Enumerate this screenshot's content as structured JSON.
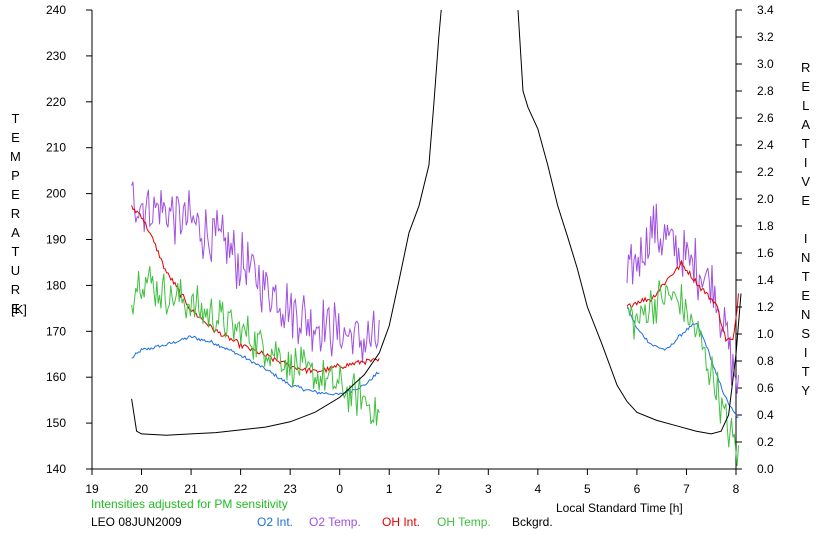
{
  "chart_data": {
    "type": "line",
    "left_axis": {
      "label": "TEMPERATURE",
      "unit": "[K]",
      "ylim": [
        140,
        240
      ],
      "ticks": [
        140,
        150,
        160,
        170,
        180,
        190,
        200,
        210,
        220,
        230,
        240
      ]
    },
    "right_axis": {
      "label": "RELATIVE INTENSITY",
      "ylim": [
        0.0,
        3.4
      ],
      "ticks": [
        "0.0",
        "0.2",
        "0.4",
        "0.6",
        "0.8",
        "1.0",
        "1.2",
        "1.4",
        "1.6",
        "1.8",
        "2.0",
        "2.2",
        "2.4",
        "2.6",
        "2.8",
        "3.0",
        "3.2",
        "3.4"
      ]
    },
    "x_axis": {
      "label": "Local Standard Time [h]",
      "domain": [
        19,
        32
      ],
      "tick_positions": [
        19,
        20,
        21,
        22,
        23,
        24,
        25,
        26,
        27,
        28,
        29,
        30,
        31,
        32
      ],
      "tick_labels": [
        "19",
        "20",
        "21",
        "22",
        "23",
        "0",
        "1",
        "2",
        "3",
        "4",
        "5",
        "6",
        "7",
        "8"
      ]
    },
    "annotation": "Intensities adjusted for PM sensitivity",
    "caption": "LEO 08JUN2009",
    "colors": {
      "o2_int": "#1e6fe0",
      "o2_temp": "#a050e0",
      "oh_int": "#e00000",
      "oh_temp": "#40c040",
      "bckgrd": "#000000",
      "annotation": "#22bb22"
    },
    "series": [
      {
        "name": "O2 Int.",
        "axis": "right",
        "key": "o2_int",
        "segments": [
          {
            "x": [
              19.8,
              20.0,
              20.5,
              21.0,
              21.5,
              22.0,
              22.5,
              23.0,
              23.5,
              24.0,
              24.5,
              24.8
            ],
            "y": [
              0.82,
              0.88,
              0.92,
              0.98,
              0.93,
              0.84,
              0.74,
              0.62,
              0.57,
              0.55,
              0.62,
              0.72
            ]
          },
          {
            "x": [
              29.8,
              30.0,
              30.3,
              30.6,
              30.9,
              31.2,
              31.4,
              31.6,
              31.8,
              31.95,
              32.05
            ],
            "y": [
              1.2,
              1.04,
              0.92,
              0.88,
              1.0,
              1.08,
              0.92,
              0.7,
              0.52,
              0.42,
              0.38
            ]
          }
        ]
      },
      {
        "name": "O2 Temp.",
        "axis": "left",
        "key": "o2_temp",
        "segments": [
          {
            "x": [
              19.8,
              20.0,
              20.5,
              21.0,
              21.5,
              22.0,
              22.5,
              23.0,
              23.5,
              24.0,
              24.5,
              24.8
            ],
            "y": [
              199,
              198,
              196,
              194,
              190,
              185,
              180,
              175,
              172,
              170,
              168,
              168
            ]
          },
          {
            "x": [
              29.8,
              30.0,
              30.3,
              30.6,
              30.9,
              31.2,
              31.4,
              31.6,
              31.8,
              31.95,
              32.05
            ],
            "y": [
              180,
              186,
              192,
              190,
              186,
              184,
              182,
              178,
              170,
              162,
              158
            ]
          }
        ]
      },
      {
        "name": "OH Int.",
        "axis": "right",
        "key": "oh_int",
        "segments": [
          {
            "x": [
              19.8,
              20.0,
              20.2,
              20.5,
              21.0,
              21.5,
              22.0,
              22.5,
              23.0,
              23.5,
              24.0,
              24.5,
              24.8
            ],
            "y": [
              1.94,
              1.88,
              1.72,
              1.46,
              1.18,
              1.02,
              0.92,
              0.84,
              0.76,
              0.72,
              0.76,
              0.8,
              0.8
            ]
          },
          {
            "x": [
              29.8,
              30.0,
              30.3,
              30.6,
              30.9,
              31.2,
              31.4,
              31.6,
              31.8,
              31.95,
              32.05
            ],
            "y": [
              1.2,
              1.24,
              1.26,
              1.4,
              1.52,
              1.38,
              1.3,
              1.22,
              0.96,
              0.95,
              1.3
            ]
          }
        ]
      },
      {
        "name": "OH Temp.",
        "axis": "left",
        "key": "oh_temp",
        "segments": [
          {
            "x": [
              19.8,
              20.0,
              20.5,
              21.0,
              21.5,
              22.0,
              22.5,
              23.0,
              23.5,
              24.0,
              24.5,
              24.8
            ],
            "y": [
              178,
              182,
              178,
              176,
              173,
              170,
              167,
              163,
              160,
              158,
              155,
              152
            ]
          },
          {
            "x": [
              29.8,
              30.0,
              30.3,
              30.6,
              30.9,
              31.2,
              31.4,
              31.6,
              31.8,
              31.95,
              32.05
            ],
            "y": [
              174,
              172,
              176,
              178,
              176,
              170,
              164,
              158,
              150,
              146,
              143
            ]
          }
        ]
      },
      {
        "name": "Bckgrd.",
        "axis": "right",
        "key": "bckgrd",
        "segments": [
          {
            "x": [
              19.8,
              19.9,
              20.0,
              20.5,
              21.0,
              21.5,
              22.0,
              22.5,
              23.0,
              23.5,
              24.0,
              24.5,
              24.8,
              25.0,
              25.2,
              25.4,
              25.6,
              25.8,
              25.9,
              26.0,
              26.05
            ],
            "y": [
              0.52,
              0.28,
              0.26,
              0.25,
              0.26,
              0.27,
              0.29,
              0.31,
              0.35,
              0.42,
              0.53,
              0.7,
              0.86,
              1.06,
              1.4,
              1.75,
              1.95,
              2.25,
              2.7,
              3.2,
              3.4
            ]
          },
          {
            "x": [
              27.6,
              27.7,
              27.8,
              28.0,
              28.2,
              28.4,
              28.6,
              28.8,
              29.0,
              29.3,
              29.6,
              29.8,
              30.0,
              30.4,
              30.8,
              31.2,
              31.5,
              31.7,
              31.85,
              32.0,
              32.1
            ],
            "y": [
              3.4,
              2.8,
              2.68,
              2.52,
              2.25,
              1.95,
              1.72,
              1.48,
              1.2,
              0.92,
              0.62,
              0.5,
              0.42,
              0.36,
              0.32,
              0.28,
              0.26,
              0.28,
              0.4,
              0.85,
              1.3
            ]
          }
        ]
      }
    ]
  }
}
